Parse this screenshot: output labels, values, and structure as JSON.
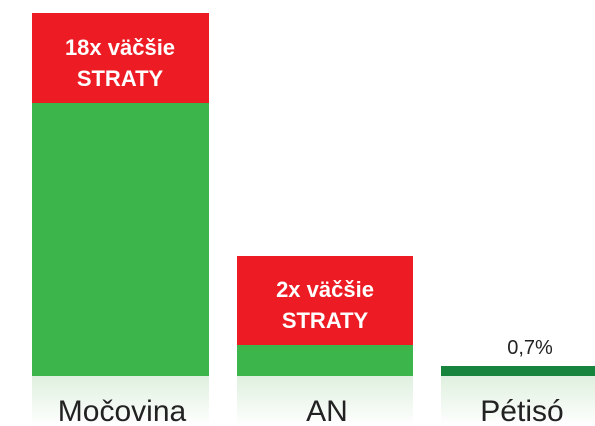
{
  "bars": [
    {
      "label": "Močovina",
      "note_lines": [
        "18x väčšie",
        "STRATY"
      ]
    },
    {
      "label": "AN",
      "note_lines": [
        "2x väčšie",
        "STRATY"
      ]
    },
    {
      "label": "Pétisó",
      "value_label": "0,7%"
    }
  ]
}
